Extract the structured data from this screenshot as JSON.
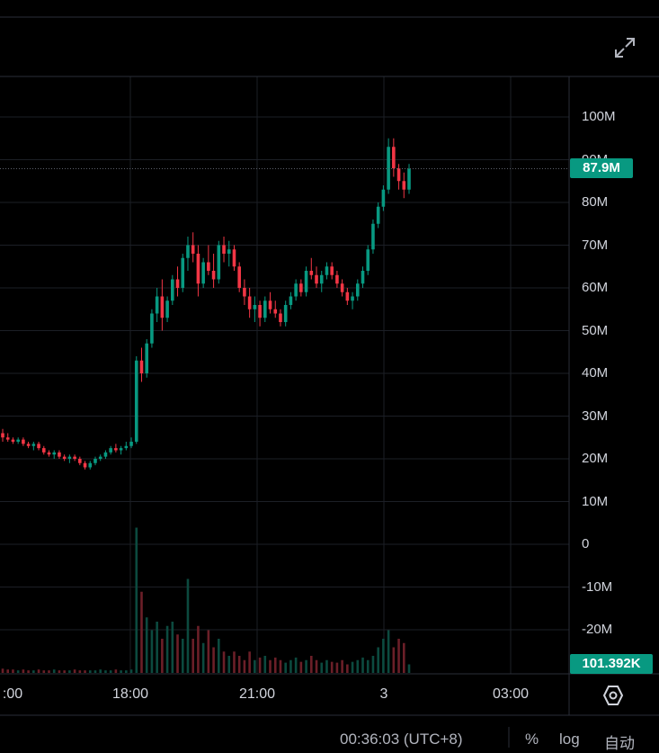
{
  "chart_data": {
    "type": "candlestick",
    "ylim": [
      -30000000,
      110000000
    ],
    "price_ticks": [
      "100M",
      "90M",
      "80M",
      "70M",
      "60M",
      "50M",
      "40M",
      "30M",
      "20M",
      "10M",
      "0",
      "-10M",
      "-20M"
    ],
    "time_ticks": [
      ":00",
      "18:00",
      "21:00",
      "3",
      "03:00"
    ],
    "last_price_label": "87.9M",
    "last_volume_label": "101.392K",
    "candles": [
      [
        26.0,
        27.0,
        24.0,
        25.0
      ],
      [
        25.0,
        26.0,
        24.0,
        24.5
      ],
      [
        24.5,
        25.0,
        23.5,
        24.0
      ],
      [
        24.0,
        25.0,
        23.5,
        24.5
      ],
      [
        24.5,
        25.0,
        23.0,
        23.5
      ],
      [
        23.5,
        24.0,
        22.5,
        23.0
      ],
      [
        23.0,
        24.0,
        22.0,
        23.5
      ],
      [
        23.5,
        24.0,
        22.0,
        22.5
      ],
      [
        22.5,
        23.0,
        21.0,
        21.5
      ],
      [
        21.5,
        22.0,
        20.5,
        21.0
      ],
      [
        21.0,
        22.0,
        20.0,
        21.5
      ],
      [
        21.5,
        22.0,
        20.0,
        20.5
      ],
      [
        20.5,
        21.0,
        19.5,
        20.0
      ],
      [
        20.0,
        21.0,
        19.0,
        20.5
      ],
      [
        20.5,
        21.0,
        19.5,
        20.0
      ],
      [
        20.0,
        20.5,
        18.5,
        19.0
      ],
      [
        19.0,
        19.5,
        17.5,
        18.0
      ],
      [
        18.0,
        19.5,
        17.5,
        19.0
      ],
      [
        19.0,
        20.5,
        18.5,
        20.0
      ],
      [
        20.0,
        21.0,
        19.5,
        20.5
      ],
      [
        20.5,
        22.0,
        20.0,
        21.5
      ],
      [
        21.5,
        23.0,
        21.0,
        22.5
      ],
      [
        22.5,
        23.5,
        21.5,
        22.0
      ],
      [
        22.0,
        23.0,
        21.0,
        22.5
      ],
      [
        22.5,
        24.0,
        22.0,
        23.0
      ],
      [
        23.0,
        25.0,
        22.5,
        24.0
      ],
      [
        24.0,
        44.0,
        23.5,
        43.0
      ],
      [
        43.0,
        46.0,
        38.0,
        40.0
      ],
      [
        40.0,
        48.0,
        39.0,
        47.0
      ],
      [
        47.0,
        55.0,
        46.0,
        54.0
      ],
      [
        54.0,
        60.0,
        52.0,
        58.0
      ],
      [
        58.0,
        62.0,
        50.0,
        53.0
      ],
      [
        53.0,
        58.0,
        52.0,
        57.0
      ],
      [
        57.0,
        63.0,
        56.0,
        62.0
      ],
      [
        62.0,
        65.0,
        58.0,
        60.0
      ],
      [
        60.0,
        68.0,
        59.0,
        67.0
      ],
      [
        67.0,
        72.0,
        64.0,
        70.0
      ],
      [
        70.0,
        73.0,
        66.0,
        68.0
      ],
      [
        68.0,
        70.0,
        58.0,
        61.0
      ],
      [
        61.0,
        67.0,
        60.0,
        66.0
      ],
      [
        66.0,
        70.0,
        63.0,
        64.0
      ],
      [
        64.0,
        68.0,
        60.0,
        62.0
      ],
      [
        62.0,
        71.0,
        61.0,
        70.0
      ],
      [
        70.0,
        72.0,
        66.0,
        68.0
      ],
      [
        68.0,
        71.0,
        65.0,
        69.0
      ],
      [
        69.0,
        70.0,
        64.0,
        65.0
      ],
      [
        65.0,
        66.0,
        59.0,
        60.0
      ],
      [
        60.0,
        62.0,
        56.0,
        58.0
      ],
      [
        58.0,
        60.0,
        53.0,
        55.0
      ],
      [
        55.0,
        58.0,
        52.0,
        56.0
      ],
      [
        56.0,
        57.0,
        51.0,
        53.0
      ],
      [
        53.0,
        58.0,
        52.0,
        57.0
      ],
      [
        57.0,
        59.0,
        54.0,
        55.0
      ],
      [
        55.0,
        57.0,
        53.0,
        54.0
      ],
      [
        54.0,
        55.0,
        51.0,
        52.0
      ],
      [
        52.0,
        57.0,
        51.0,
        56.0
      ],
      [
        56.0,
        59.0,
        55.0,
        58.0
      ],
      [
        58.0,
        62.0,
        57.0,
        61.0
      ],
      [
        61.0,
        62.0,
        58.0,
        59.0
      ],
      [
        59.0,
        65.0,
        58.0,
        64.0
      ],
      [
        64.0,
        67.0,
        62.0,
        63.0
      ],
      [
        63.0,
        65.0,
        60.0,
        61.0
      ],
      [
        61.0,
        64.0,
        59.0,
        63.0
      ],
      [
        63.0,
        66.0,
        62.0,
        65.0
      ],
      [
        65.0,
        66.0,
        62.0,
        63.0
      ],
      [
        63.0,
        64.0,
        60.0,
        61.0
      ],
      [
        61.0,
        62.0,
        58.0,
        59.0
      ],
      [
        59.0,
        60.0,
        56.0,
        57.0
      ],
      [
        57.0,
        59.0,
        55.0,
        58.0
      ],
      [
        58.0,
        62.0,
        57.0,
        61.0
      ],
      [
        61.0,
        65.0,
        60.0,
        64.0
      ],
      [
        64.0,
        70.0,
        63.0,
        69.0
      ],
      [
        69.0,
        76.0,
        68.0,
        75.0
      ],
      [
        75.0,
        80.0,
        74.0,
        79.0
      ],
      [
        79.0,
        84.0,
        78.0,
        83.0
      ],
      [
        83.0,
        95.0,
        82.0,
        93.0
      ],
      [
        93.0,
        95.0,
        86.0,
        88.0
      ],
      [
        88.0,
        89.0,
        83.0,
        85.0
      ],
      [
        85.0,
        87.0,
        81.0,
        83.0
      ],
      [
        83.0,
        89.0,
        82.0,
        87.9
      ]
    ],
    "volumes": [
      0.5,
      0.4,
      0.4,
      0.3,
      0.4,
      0.3,
      0.3,
      0.4,
      0.3,
      0.3,
      0.4,
      0.3,
      0.3,
      0.3,
      0.4,
      0.3,
      0.3,
      0.3,
      0.3,
      0.4,
      0.3,
      0.3,
      0.4,
      0.3,
      0.3,
      0.4,
      17.0,
      9.5,
      6.5,
      5.0,
      6.0,
      4.0,
      5.5,
      6.0,
      4.5,
      4.0,
      11.0,
      4.0,
      5.5,
      3.5,
      5.0,
      3.0,
      4.0,
      2.5,
      2.0,
      2.5,
      2.0,
      1.5,
      2.5,
      1.5,
      1.8,
      2.0,
      1.5,
      1.8,
      1.5,
      1.2,
      1.5,
      1.8,
      1.3,
      1.5,
      2.0,
      1.5,
      1.2,
      1.5,
      1.3,
      1.2,
      1.5,
      1.0,
      1.3,
      1.5,
      1.8,
      1.5,
      2.0,
      3.0,
      4.0,
      5.0,
      3.0,
      4.0,
      3.5,
      1.0
    ],
    "grid": true
  },
  "toolbar": {
    "expand_icon": "expand-arrows-icon"
  },
  "footer": {
    "time": "00:36:03 (UTC+8)",
    "percent_label": "%",
    "log_label": "log",
    "auto_label": "自动"
  },
  "colors": {
    "up": "#089981",
    "down": "#f23645",
    "grid": "#1c1f26",
    "axis_text": "#d1d4dc"
  }
}
